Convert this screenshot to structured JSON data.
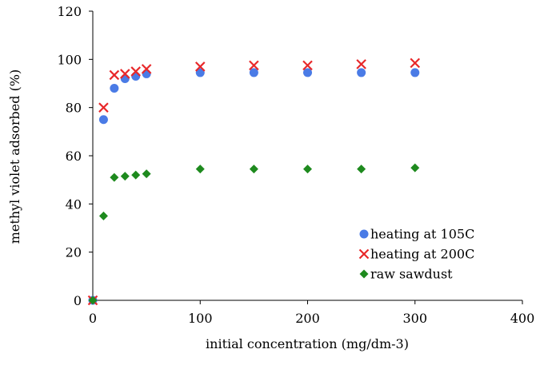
{
  "chart_data": {
    "type": "scatter",
    "title": "",
    "xlabel": "initial concentration (mg/dm-3)",
    "ylabel": "methyl violet adsorbed (%)",
    "xlim": [
      0,
      400
    ],
    "ylim": [
      0,
      120
    ],
    "xticks": [
      0,
      100,
      200,
      300,
      400
    ],
    "yticks": [
      0,
      20,
      40,
      60,
      80,
      100,
      120
    ],
    "grid": false,
    "legend_position": "bottom-right",
    "series": [
      {
        "name": "heating at 105C",
        "marker": "circle",
        "color": "#4a7be6",
        "x": [
          0,
          10,
          20,
          30,
          40,
          50,
          100,
          150,
          200,
          250,
          300
        ],
        "y": [
          0,
          75,
          88,
          92,
          93,
          94,
          94.5,
          94.5,
          94.5,
          94.5,
          94.5
        ]
      },
      {
        "name": "heating at 200C",
        "marker": "x",
        "color": "#e8282a",
        "x": [
          0,
          10,
          20,
          30,
          40,
          50,
          100,
          150,
          200,
          250,
          300
        ],
        "y": [
          0,
          80,
          93.5,
          94,
          95,
          96,
          97,
          97.5,
          97.5,
          98,
          98.5
        ]
      },
      {
        "name": "raw sawdust",
        "marker": "diamond",
        "color": "#1e8a1e",
        "x": [
          0,
          10,
          20,
          30,
          40,
          50,
          100,
          150,
          200,
          250,
          300
        ],
        "y": [
          0,
          35,
          51,
          51.5,
          52,
          52.5,
          54.5,
          54.5,
          54.5,
          54.5,
          55
        ]
      }
    ]
  }
}
